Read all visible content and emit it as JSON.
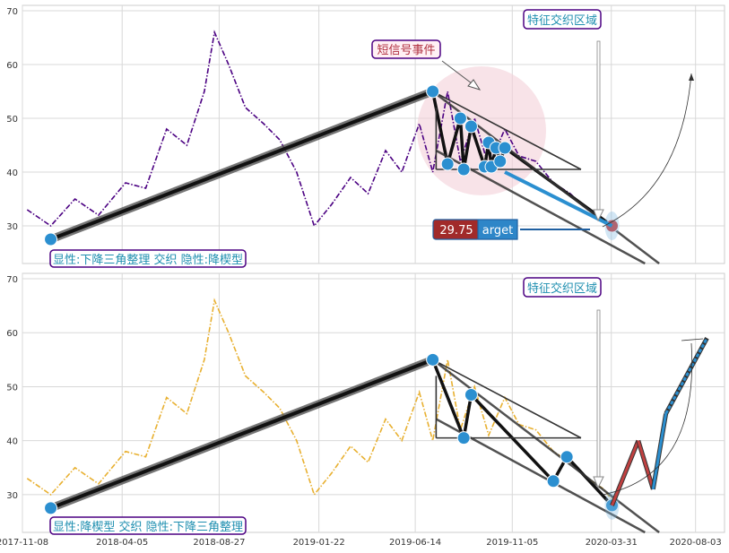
{
  "chart_data": [
    {
      "type": "line",
      "panel": "top",
      "series": [
        {
          "color": "#4b0082",
          "style": "dash-dot",
          "x": [
            "2017-11-15",
            "2017-12-20",
            "2018-01-25",
            "2018-03-01",
            "2018-04-10",
            "2018-05-10",
            "2018-06-10",
            "2018-07-10",
            "2018-08-05",
            "2018-08-20",
            "2018-09-10",
            "2018-10-05",
            "2018-11-01",
            "2018-11-25",
            "2018-12-20",
            "2019-01-15",
            "2019-02-10",
            "2019-03-10",
            "2019-04-05",
            "2019-05-01",
            "2019-05-25",
            "2019-06-20",
            "2019-07-10",
            "2019-08-01",
            "2019-08-20",
            "2019-09-10",
            "2019-10-01",
            "2019-10-25",
            "2019-11-15",
            "2019-12-10",
            "2020-01-05",
            "2020-01-30",
            "2020-02-25",
            "2020-03-20",
            "2020-04-01"
          ],
          "values": [
            33,
            30,
            35,
            32,
            38,
            37,
            48,
            45,
            55,
            66,
            60,
            52,
            49,
            46,
            40,
            30,
            34,
            39,
            36,
            44,
            40,
            49,
            40,
            55,
            42,
            50,
            41,
            48,
            43,
            42,
            38,
            36,
            33,
            31,
            29
          ]
        }
      ],
      "ylim": [
        23,
        71
      ],
      "yticks": [
        "30",
        "40",
        "50",
        "60",
        "70"
      ],
      "annotations": {
        "short_signal": "短信号事件",
        "feature_zone": "特征交织区域",
        "target_value": "29.75",
        "target_word": "arget",
        "pattern_caption": "显性:下降三角整理 交织 隐性:降楔型"
      },
      "overlay_points": [
        {
          "x": "2017-12-20",
          "y": 27.5
        },
        {
          "x": "2019-07-10",
          "y": 55
        },
        {
          "x": "2019-08-01",
          "y": 41.5
        },
        {
          "x": "2019-08-20",
          "y": 50
        },
        {
          "x": "2019-08-25",
          "y": 40.5
        },
        {
          "x": "2019-09-05",
          "y": 48.5
        },
        {
          "x": "2019-09-25",
          "y": 41
        },
        {
          "x": "2019-10-01",
          "y": 45.5
        },
        {
          "x": "2019-10-05",
          "y": 41
        },
        {
          "x": "2019-10-12",
          "y": 44.5
        },
        {
          "x": "2019-10-18",
          "y": 42
        },
        {
          "x": "2019-10-25",
          "y": 44.5
        },
        {
          "x": "2020-04-01",
          "y": 30
        }
      ]
    },
    {
      "type": "line",
      "panel": "bottom",
      "series": [
        {
          "color": "#e8b030",
          "style": "dash-dot",
          "x": [
            "2017-11-15",
            "2017-12-20",
            "2018-01-25",
            "2018-03-01",
            "2018-04-10",
            "2018-05-10",
            "2018-06-10",
            "2018-07-10",
            "2018-08-05",
            "2018-08-20",
            "2018-09-10",
            "2018-10-05",
            "2018-11-01",
            "2018-11-25",
            "2018-12-20",
            "2019-01-15",
            "2019-02-10",
            "2019-03-10",
            "2019-04-05",
            "2019-05-01",
            "2019-05-25",
            "2019-06-20",
            "2019-07-10",
            "2019-08-01",
            "2019-08-20",
            "2019-09-10",
            "2019-10-01",
            "2019-10-25",
            "2019-11-15",
            "2019-12-10",
            "2020-01-05",
            "2020-01-30",
            "2020-02-25",
            "2020-03-20",
            "2020-04-01"
          ],
          "values": [
            33,
            30,
            35,
            32,
            38,
            37,
            48,
            45,
            55,
            66,
            60,
            52,
            49,
            46,
            40,
            30,
            34,
            39,
            36,
            44,
            40,
            49,
            40,
            55,
            42,
            50,
            41,
            48,
            43,
            42,
            38,
            36,
            33,
            31,
            29
          ]
        }
      ],
      "ylim": [
        23,
        71
      ],
      "yticks": [
        "30",
        "40",
        "50",
        "60",
        "70"
      ],
      "xticks": [
        "2017-11-08",
        "2018-04-05",
        "2018-08-27",
        "2019-01-22",
        "2019-06-14",
        "2019-11-05",
        "2020-03-31",
        "2020-08-03"
      ],
      "annotations": {
        "feature_zone": "特征交织区域",
        "pattern_caption": "显性:降楔型 交织 隐性:下降三角整理"
      },
      "overlay_points": [
        {
          "x": "2017-12-20",
          "y": 27.5
        },
        {
          "x": "2019-07-10",
          "y": 55
        },
        {
          "x": "2019-08-25",
          "y": 40.5
        },
        {
          "x": "2019-09-05",
          "y": 48.5
        },
        {
          "x": "2020-01-05",
          "y": 32.5
        },
        {
          "x": "2020-01-25",
          "y": 37
        },
        {
          "x": "2020-04-01",
          "y": 28
        }
      ],
      "projection": {
        "x": [
          "2020-04-01",
          "2020-05-10",
          "2020-06-01",
          "2020-06-20",
          "2020-08-20"
        ],
        "y": [
          28,
          40,
          31,
          45,
          59
        ]
      }
    }
  ]
}
